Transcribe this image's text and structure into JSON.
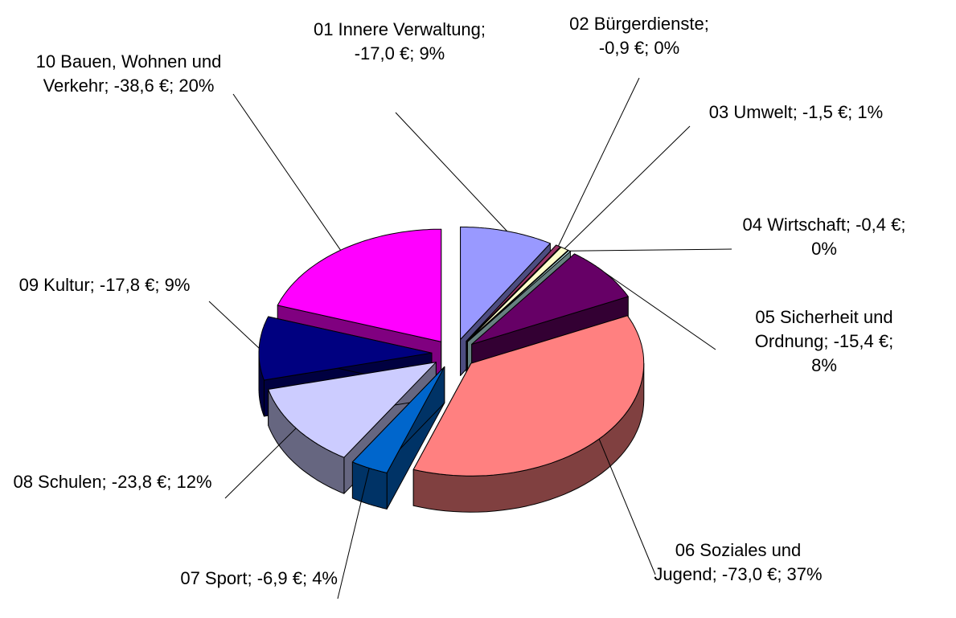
{
  "chart_data": {
    "type": "pie",
    "values": [
      -17.0,
      -0.9,
      -1.5,
      -0.4,
      -15.4,
      -73.0,
      -6.9,
      -23.8,
      -17.8,
      -38.6
    ],
    "value_labels": [
      "01 Innere Verwaltung; -17,0 €; 9%",
      "02 Bürgerdienste; -0,9 €; 0%",
      "03 Umwelt; -1,5 €; 1%",
      "04 Wirtschaft; -0,4 €; 0%",
      "05 Sicherheit und Ordnung; -15,4 €; 8%",
      "06 Soziales und Jugend; -73,0 €; 37%",
      "07 Sport; -6,9 €; 4%",
      "08 Schulen; -23,8 €; 12%",
      "09 Kultur; -17,8 €; 9%",
      "10 Bauen, Wohnen und Verkehr; -38,6 €; 20%"
    ],
    "colors": [
      "#9999ff",
      "#993366",
      "#ffffcc",
      "#ccffff",
      "#660066",
      "#ff8080",
      "#0066cc",
      "#ccccff",
      "#000080",
      "#ff00ff"
    ]
  }
}
